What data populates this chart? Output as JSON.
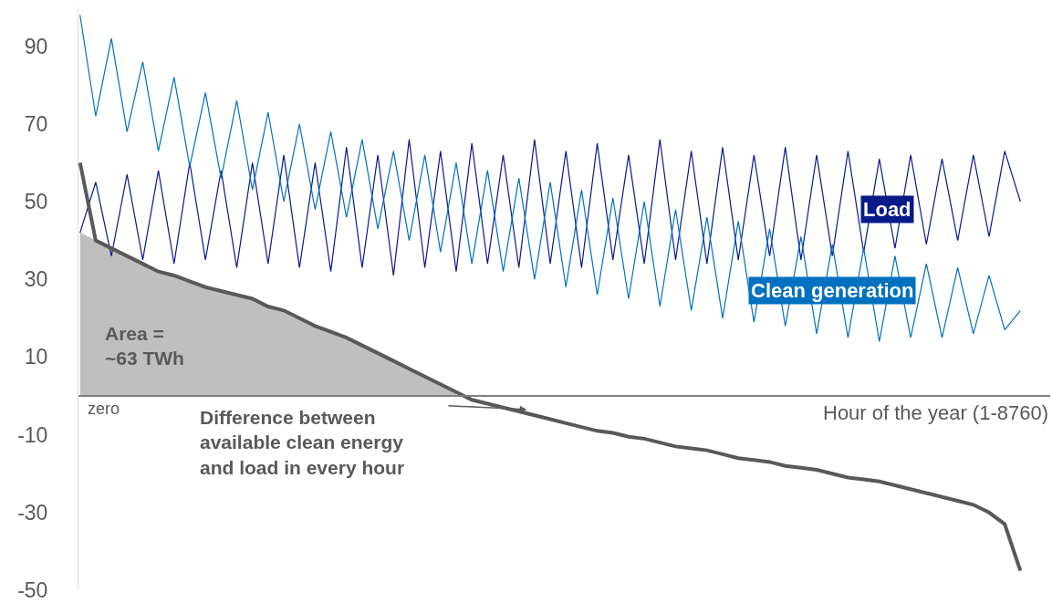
{
  "chart_data": {
    "type": "line",
    "xlabel": "Hour of the year (1-8760)",
    "categories": [
      null,
      null,
      null,
      null,
      null,
      null,
      null,
      null,
      null,
      null,
      null,
      null,
      null,
      null,
      null,
      null,
      null,
      null,
      null,
      null,
      null,
      null,
      null,
      null,
      null,
      null,
      null,
      null,
      null,
      null,
      null,
      null,
      null,
      null,
      null,
      null,
      null,
      null,
      null,
      null,
      null,
      null,
      null,
      null,
      null,
      null,
      null,
      null,
      null,
      null,
      null,
      null,
      null,
      null,
      null,
      null,
      null,
      null,
      null,
      null,
      null
    ],
    "series": [
      {
        "type": "area",
        "color": "#bfbfbf",
        "values": [
          42,
          40,
          38,
          36,
          34,
          32,
          31,
          29.5,
          28,
          27,
          26,
          25,
          23,
          22,
          20,
          18,
          16.5,
          15,
          13,
          11,
          9,
          7,
          5,
          3,
          1,
          null,
          null,
          null,
          null,
          null,
          null,
          null,
          null,
          null,
          null,
          null,
          null,
          null,
          null,
          null,
          null,
          null,
          null,
          null,
          null,
          null,
          null,
          null,
          null,
          null,
          null,
          null,
          null,
          null,
          null,
          null,
          null,
          null,
          null,
          null,
          null
        ]
      },
      {
        "name": "Load",
        "color": "#0a1a8a",
        "values": [
          42,
          55,
          36,
          57,
          35,
          58,
          34,
          60,
          35,
          58,
          33,
          60,
          34,
          62,
          33,
          60,
          32,
          64,
          33,
          62,
          31,
          66,
          33,
          63,
          32,
          65,
          34,
          62,
          33,
          66,
          34,
          63,
          33,
          65,
          35,
          62,
          34,
          66,
          35,
          63,
          34,
          64,
          35,
          62,
          36,
          64,
          35,
          62,
          36,
          63,
          37,
          61,
          38,
          62,
          39,
          61,
          40,
          62,
          41,
          63,
          50
        ]
      },
      {
        "name": "Clean generation",
        "color": "#0070c0",
        "values": [
          98,
          72,
          92,
          68,
          86,
          63,
          82,
          59,
          78,
          56,
          76,
          53,
          73,
          50,
          70,
          48,
          68,
          46,
          66,
          43,
          63,
          40,
          62,
          37,
          60,
          34,
          58,
          32,
          56,
          30,
          55,
          28,
          53,
          26,
          51,
          25,
          50,
          23,
          48,
          22,
          46,
          20,
          45,
          19,
          43,
          18,
          41,
          16,
          39,
          15,
          38,
          14,
          36,
          15,
          34,
          15,
          33,
          16,
          31,
          17,
          22
        ]
      },
      {
        "color": "#595959",
        "values": [
          60,
          40,
          38,
          36,
          34,
          32,
          31,
          29.5,
          28,
          27,
          26,
          25,
          23,
          22,
          20,
          18,
          16.5,
          15,
          13,
          11,
          9,
          7,
          5,
          3,
          1,
          -1,
          -2,
          -3,
          -4,
          -5,
          -6,
          -7,
          -8,
          -9,
          -9.5,
          -10.5,
          -11,
          -12,
          -13,
          -13.5,
          -14,
          -15,
          -16,
          -16.5,
          -17,
          -18,
          -18.5,
          -19,
          -20,
          -21,
          -21.5,
          -22,
          -23,
          -24,
          -25,
          -26,
          -27,
          -28,
          -30,
          -33,
          -45
        ]
      }
    ],
    "ylim": [
      -50,
      100
    ],
    "yticks": [
      90,
      70,
      50,
      30,
      10,
      -10,
      -30,
      -50
    ],
    "ref_lines": [
      {
        "axis": "y",
        "value": 0,
        "label": "zero",
        "color": "#7f7f7f"
      }
    ],
    "annotations": [
      "Area =\n~63 TWh",
      "Difference between\navailable clean energy\nand load in every hour"
    ],
    "grid": false,
    "legend": false,
    "marker": "none",
    "line_style": "solid",
    "tick_labels": "y"
  }
}
